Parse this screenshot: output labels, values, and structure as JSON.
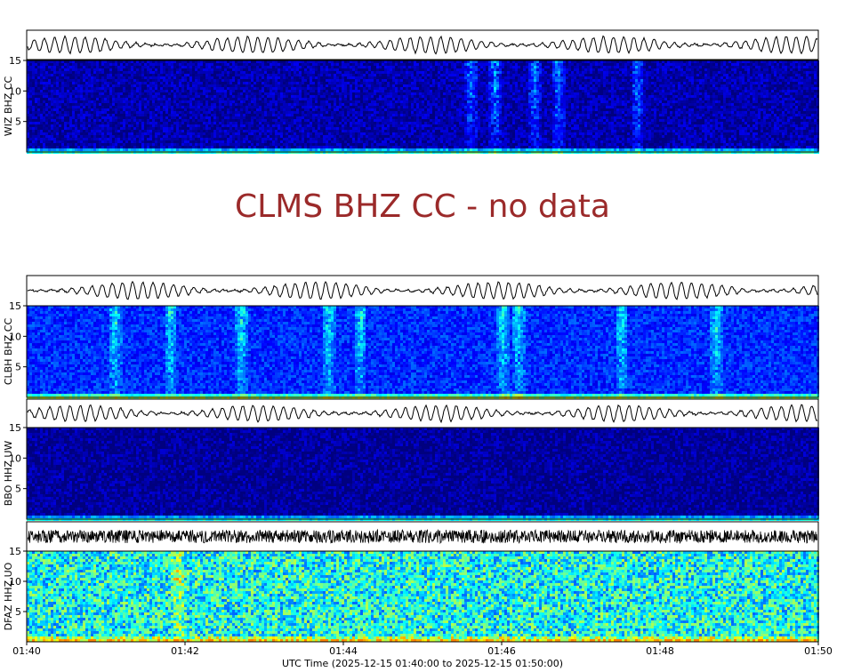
{
  "chart_data": {
    "type": "heatmap",
    "x_ticks": [
      "01:40",
      "01:42",
      "01:44",
      "01:46",
      "01:48",
      "01:50"
    ],
    "xlabel": "UTC Time (2025-12-15 01:40:00 to 2025-12-15 01:50:00)",
    "x_range": [
      "2025-12-15 01:40:00",
      "2025-12-15 01:50:00"
    ],
    "y_range": [
      0,
      15
    ],
    "y_ticks": [
      5,
      10,
      15
    ],
    "colormap": [
      "#00007f",
      "#0000ff",
      "#0080ff",
      "#00ffff",
      "#80ff80",
      "#ffff00",
      "#ff8000"
    ],
    "panels": [
      {
        "label": "WIZ BHZ CC",
        "has_data": true,
        "level": "low",
        "bursts_minutes": [
          5.6,
          5.9,
          6.4,
          6.7,
          7.7
        ]
      },
      {
        "label": "CLMS BHZ CC - no data",
        "has_data": false
      },
      {
        "label": "CLBH BHZ CC",
        "has_data": true,
        "level": "medium",
        "bursts_minutes": [
          1.1,
          1.8,
          2.7,
          3.8,
          4.2,
          6.0,
          6.2,
          7.5,
          8.7
        ]
      },
      {
        "label": "BBO HHZ UW",
        "has_data": true,
        "level": "very-low",
        "bursts_minutes": []
      },
      {
        "label": "DFAZ HHZ UO",
        "has_data": true,
        "level": "high",
        "bursts_minutes": [
          1.9
        ]
      }
    ]
  }
}
